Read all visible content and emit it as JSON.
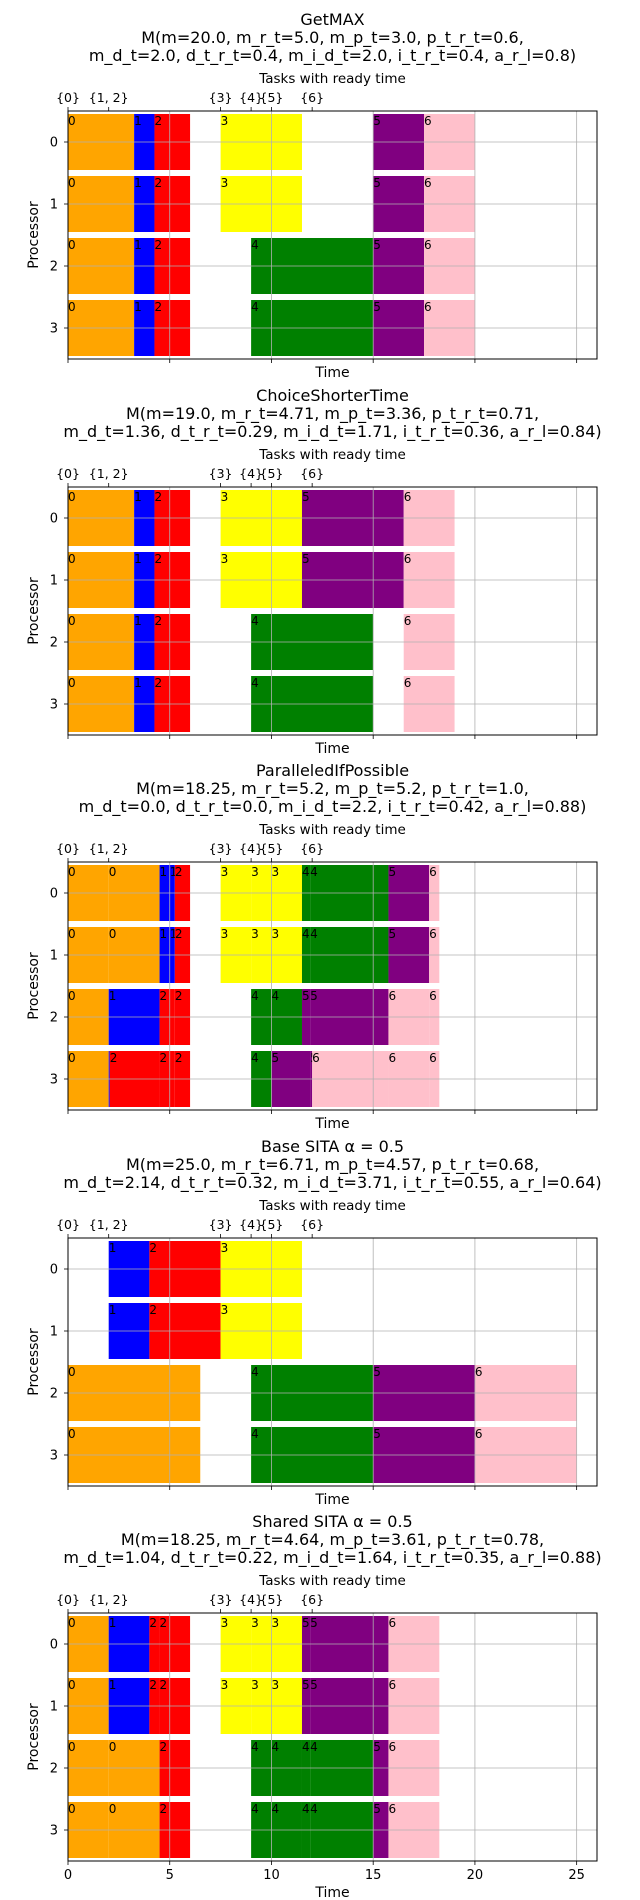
{
  "figure": {
    "xlabel": "Time",
    "ylabel": "Processor",
    "top_label": "Tasks with ready time",
    "xlim": [
      0,
      26
    ],
    "ready_ticks": [
      {
        "x": 0,
        "label": "{0}"
      },
      {
        "x": 2,
        "label": "{1, 2}"
      },
      {
        "x": 7.5,
        "label": "{3}"
      },
      {
        "x": 9,
        "label": "{4}"
      },
      {
        "x": 10,
        "label": "{5}"
      },
      {
        "x": 12,
        "label": "{6}"
      }
    ],
    "x_ticks": [
      0,
      5,
      10,
      15,
      20,
      25
    ],
    "processors": [
      0,
      1,
      2,
      3
    ],
    "task_colors": {
      "0": "#ffa500",
      "1": "#0000ff",
      "2": "#ff0000",
      "3": "#ffff00",
      "4": "#008000",
      "5": "#800080",
      "6": "#ffc0cb"
    }
  },
  "chart_data": [
    {
      "type": "gantt",
      "title": "GetMAX",
      "metrics_line1": "M(m=20.0, m_r_t=5.0, m_p_t=3.0, p_t_r_t=0.6,",
      "metrics_line2": "m_d_t=2.0, d_t_r_t=0.4, m_i_d_t=2.0, i_t_r_t=0.4, a_r_l=0.8)",
      "bars": [
        {
          "p": 0,
          "task": 0,
          "start": 0,
          "end": 3.25
        },
        {
          "p": 0,
          "task": 1,
          "start": 3.25,
          "end": 4.25
        },
        {
          "p": 0,
          "task": 2,
          "start": 4.25,
          "end": 6
        },
        {
          "p": 0,
          "task": 3,
          "start": 7.5,
          "end": 11.5
        },
        {
          "p": 0,
          "task": 5,
          "start": 15,
          "end": 17.5
        },
        {
          "p": 0,
          "task": 6,
          "start": 17.5,
          "end": 20
        },
        {
          "p": 1,
          "task": 0,
          "start": 0,
          "end": 3.25
        },
        {
          "p": 1,
          "task": 1,
          "start": 3.25,
          "end": 4.25
        },
        {
          "p": 1,
          "task": 2,
          "start": 4.25,
          "end": 6
        },
        {
          "p": 1,
          "task": 3,
          "start": 7.5,
          "end": 11.5
        },
        {
          "p": 1,
          "task": 5,
          "start": 15,
          "end": 17.5
        },
        {
          "p": 1,
          "task": 6,
          "start": 17.5,
          "end": 20
        },
        {
          "p": 2,
          "task": 0,
          "start": 0,
          "end": 3.25
        },
        {
          "p": 2,
          "task": 1,
          "start": 3.25,
          "end": 4.25
        },
        {
          "p": 2,
          "task": 2,
          "start": 4.25,
          "end": 6
        },
        {
          "p": 2,
          "task": 4,
          "start": 9,
          "end": 15
        },
        {
          "p": 2,
          "task": 5,
          "start": 15,
          "end": 17.5
        },
        {
          "p": 2,
          "task": 6,
          "start": 17.5,
          "end": 20
        },
        {
          "p": 3,
          "task": 0,
          "start": 0,
          "end": 3.25
        },
        {
          "p": 3,
          "task": 1,
          "start": 3.25,
          "end": 4.25
        },
        {
          "p": 3,
          "task": 2,
          "start": 4.25,
          "end": 6
        },
        {
          "p": 3,
          "task": 4,
          "start": 9,
          "end": 15
        },
        {
          "p": 3,
          "task": 5,
          "start": 15,
          "end": 17.5
        },
        {
          "p": 3,
          "task": 6,
          "start": 17.5,
          "end": 20
        }
      ]
    },
    {
      "type": "gantt",
      "title": "ChoiceShorterTime",
      "metrics_line1": "M(m=19.0, m_r_t=4.71, m_p_t=3.36, p_t_r_t=0.71,",
      "metrics_line2": "m_d_t=1.36, d_t_r_t=0.29, m_i_d_t=1.71, i_t_r_t=0.36, a_r_l=0.84)",
      "bars": [
        {
          "p": 0,
          "task": 0,
          "start": 0,
          "end": 3.25
        },
        {
          "p": 0,
          "task": 1,
          "start": 3.25,
          "end": 4.25
        },
        {
          "p": 0,
          "task": 2,
          "start": 4.25,
          "end": 6
        },
        {
          "p": 0,
          "task": 3,
          "start": 7.5,
          "end": 11.5
        },
        {
          "p": 0,
          "task": 5,
          "start": 11.5,
          "end": 16.5
        },
        {
          "p": 0,
          "task": 6,
          "start": 16.5,
          "end": 19
        },
        {
          "p": 1,
          "task": 0,
          "start": 0,
          "end": 3.25
        },
        {
          "p": 1,
          "task": 1,
          "start": 3.25,
          "end": 4.25
        },
        {
          "p": 1,
          "task": 2,
          "start": 4.25,
          "end": 6
        },
        {
          "p": 1,
          "task": 3,
          "start": 7.5,
          "end": 11.5
        },
        {
          "p": 1,
          "task": 5,
          "start": 11.5,
          "end": 16.5
        },
        {
          "p": 1,
          "task": 6,
          "start": 16.5,
          "end": 19
        },
        {
          "p": 2,
          "task": 0,
          "start": 0,
          "end": 3.25
        },
        {
          "p": 2,
          "task": 1,
          "start": 3.25,
          "end": 4.25
        },
        {
          "p": 2,
          "task": 2,
          "start": 4.25,
          "end": 6
        },
        {
          "p": 2,
          "task": 4,
          "start": 9,
          "end": 15
        },
        {
          "p": 2,
          "task": 6,
          "start": 16.5,
          "end": 19
        },
        {
          "p": 3,
          "task": 0,
          "start": 0,
          "end": 3.25
        },
        {
          "p": 3,
          "task": 1,
          "start": 3.25,
          "end": 4.25
        },
        {
          "p": 3,
          "task": 2,
          "start": 4.25,
          "end": 6
        },
        {
          "p": 3,
          "task": 4,
          "start": 9,
          "end": 15
        },
        {
          "p": 3,
          "task": 6,
          "start": 16.5,
          "end": 19
        }
      ]
    },
    {
      "type": "gantt",
      "title": "ParalleledIfPossible",
      "metrics_line1": "M(m=18.25, m_r_t=5.2, m_p_t=5.2, p_t_r_t=1.0,",
      "metrics_line2": "m_d_t=0.0, d_t_r_t=0.0, m_i_d_t=2.2, i_t_r_t=0.42, a_r_l=0.88)",
      "bars": [
        {
          "p": 0,
          "task": 0,
          "start": 0,
          "end": 2,
          "label": "0"
        },
        {
          "p": 0,
          "task": 0,
          "start": 2,
          "end": 4.5,
          "label": "0"
        },
        {
          "p": 0,
          "task": 1,
          "start": 4.5,
          "end": 5,
          "label": "1"
        },
        {
          "p": 0,
          "task": 1,
          "start": 5,
          "end": 5.25,
          "label": "1"
        },
        {
          "p": 0,
          "task": 2,
          "start": 5.25,
          "end": 6,
          "label": "2"
        },
        {
          "p": 0,
          "task": 3,
          "start": 7.5,
          "end": 9,
          "label": "3"
        },
        {
          "p": 0,
          "task": 3,
          "start": 9,
          "end": 10,
          "label": "3"
        },
        {
          "p": 0,
          "task": 3,
          "start": 10,
          "end": 11.5,
          "label": "3"
        },
        {
          "p": 0,
          "task": 4,
          "start": 11.5,
          "end": 11.9,
          "label": "4"
        },
        {
          "p": 0,
          "task": 4,
          "start": 11.9,
          "end": 15.75,
          "label": "4"
        },
        {
          "p": 0,
          "task": 5,
          "start": 15.75,
          "end": 17.75,
          "label": "5"
        },
        {
          "p": 0,
          "task": 6,
          "start": 17.75,
          "end": 18.25,
          "label": "6"
        },
        {
          "p": 1,
          "task": 0,
          "start": 0,
          "end": 2,
          "label": "0"
        },
        {
          "p": 1,
          "task": 0,
          "start": 2,
          "end": 4.5,
          "label": "0"
        },
        {
          "p": 1,
          "task": 1,
          "start": 4.5,
          "end": 5,
          "label": "1"
        },
        {
          "p": 1,
          "task": 1,
          "start": 5,
          "end": 5.25,
          "label": "1"
        },
        {
          "p": 1,
          "task": 2,
          "start": 5.25,
          "end": 6,
          "label": "2"
        },
        {
          "p": 1,
          "task": 3,
          "start": 7.5,
          "end": 9,
          "label": "3"
        },
        {
          "p": 1,
          "task": 3,
          "start": 9,
          "end": 10,
          "label": "3"
        },
        {
          "p": 1,
          "task": 3,
          "start": 10,
          "end": 11.5,
          "label": "3"
        },
        {
          "p": 1,
          "task": 4,
          "start": 11.5,
          "end": 11.9,
          "label": "4"
        },
        {
          "p": 1,
          "task": 4,
          "start": 11.9,
          "end": 15.75,
          "label": "4"
        },
        {
          "p": 1,
          "task": 5,
          "start": 15.75,
          "end": 17.75,
          "label": "5"
        },
        {
          "p": 1,
          "task": 6,
          "start": 17.75,
          "end": 18.25,
          "label": "6"
        },
        {
          "p": 2,
          "task": 0,
          "start": 0,
          "end": 2,
          "label": "0"
        },
        {
          "p": 2,
          "task": 1,
          "start": 2,
          "end": 4.5,
          "label": "1"
        },
        {
          "p": 2,
          "task": 2,
          "start": 4.5,
          "end": 5.25,
          "label": "2"
        },
        {
          "p": 2,
          "task": 2,
          "start": 5.25,
          "end": 6,
          "label": "2"
        },
        {
          "p": 2,
          "task": 4,
          "start": 9,
          "end": 10,
          "label": "4"
        },
        {
          "p": 2,
          "task": 4,
          "start": 10,
          "end": 11.5,
          "label": "4"
        },
        {
          "p": 2,
          "task": 5,
          "start": 11.5,
          "end": 11.9,
          "label": "5"
        },
        {
          "p": 2,
          "task": 5,
          "start": 11.9,
          "end": 15.75,
          "label": "5"
        },
        {
          "p": 2,
          "task": 6,
          "start": 15.75,
          "end": 17.75,
          "label": "6"
        },
        {
          "p": 2,
          "task": 6,
          "start": 17.75,
          "end": 18.25,
          "label": "6"
        },
        {
          "p": 3,
          "task": 0,
          "start": 0,
          "end": 2,
          "label": "0"
        },
        {
          "p": 3,
          "task": 1,
          "start": 2,
          "end": 2.05,
          "label": "1"
        },
        {
          "p": 3,
          "task": 2,
          "start": 2.05,
          "end": 4.5,
          "label": "2"
        },
        {
          "p": 3,
          "task": 2,
          "start": 4.5,
          "end": 5.25,
          "label": "2"
        },
        {
          "p": 3,
          "task": 2,
          "start": 5.25,
          "end": 6,
          "label": "2"
        },
        {
          "p": 3,
          "task": 4,
          "start": 9,
          "end": 10,
          "label": "4"
        },
        {
          "p": 3,
          "task": 5,
          "start": 10,
          "end": 11.9,
          "label": "5"
        },
        {
          "p": 3,
          "task": 5,
          "start": 11.9,
          "end": 12,
          "label": "5"
        },
        {
          "p": 3,
          "task": 6,
          "start": 12,
          "end": 15.75,
          "label": "6"
        },
        {
          "p": 3,
          "task": 6,
          "start": 15.75,
          "end": 17.75,
          "label": "6"
        },
        {
          "p": 3,
          "task": 6,
          "start": 17.75,
          "end": 18.25,
          "label": "6"
        }
      ]
    },
    {
      "type": "gantt",
      "title": "Base SITA α = 0.5",
      "metrics_line1": "M(m=25.0, m_r_t=6.71, m_p_t=4.57, p_t_r_t=0.68,",
      "metrics_line2": "m_d_t=2.14, d_t_r_t=0.32, m_i_d_t=3.71, i_t_r_t=0.55, a_r_l=0.64)",
      "bars": [
        {
          "p": 0,
          "task": 1,
          "start": 2,
          "end": 4
        },
        {
          "p": 0,
          "task": 2,
          "start": 4,
          "end": 7.5
        },
        {
          "p": 0,
          "task": 3,
          "start": 7.5,
          "end": 11.5
        },
        {
          "p": 1,
          "task": 1,
          "start": 2,
          "end": 4
        },
        {
          "p": 1,
          "task": 2,
          "start": 4,
          "end": 7.5
        },
        {
          "p": 1,
          "task": 3,
          "start": 7.5,
          "end": 11.5
        },
        {
          "p": 2,
          "task": 0,
          "start": 0,
          "end": 6.5
        },
        {
          "p": 2,
          "task": 4,
          "start": 9,
          "end": 15
        },
        {
          "p": 2,
          "task": 5,
          "start": 15,
          "end": 20
        },
        {
          "p": 2,
          "task": 6,
          "start": 20,
          "end": 25
        },
        {
          "p": 3,
          "task": 0,
          "start": 0,
          "end": 6.5
        },
        {
          "p": 3,
          "task": 4,
          "start": 9,
          "end": 15
        },
        {
          "p": 3,
          "task": 5,
          "start": 15,
          "end": 20
        },
        {
          "p": 3,
          "task": 6,
          "start": 20,
          "end": 25
        }
      ]
    },
    {
      "type": "gantt",
      "title": "Shared SITA α = 0.5",
      "metrics_line1": "M(m=18.25, m_r_t=4.64, m_p_t=3.61, p_t_r_t=0.78,",
      "metrics_line2": "m_d_t=1.04, d_t_r_t=0.22, m_i_d_t=1.64, i_t_r_t=0.35, a_r_l=0.88)",
      "bars": [
        {
          "p": 0,
          "task": 0,
          "start": 0,
          "end": 2,
          "label": "0"
        },
        {
          "p": 0,
          "task": 1,
          "start": 2,
          "end": 4,
          "label": "1"
        },
        {
          "p": 0,
          "task": 2,
          "start": 4,
          "end": 4.5,
          "label": "2"
        },
        {
          "p": 0,
          "task": 2,
          "start": 4.5,
          "end": 6,
          "label": "2"
        },
        {
          "p": 0,
          "task": 3,
          "start": 7.5,
          "end": 9,
          "label": "3"
        },
        {
          "p": 0,
          "task": 3,
          "start": 9,
          "end": 10,
          "label": "3"
        },
        {
          "p": 0,
          "task": 3,
          "start": 10,
          "end": 11.5,
          "label": "3"
        },
        {
          "p": 0,
          "task": 5,
          "start": 11.5,
          "end": 11.9,
          "label": "5"
        },
        {
          "p": 0,
          "task": 5,
          "start": 11.9,
          "end": 15.75,
          "label": "5"
        },
        {
          "p": 0,
          "task": 6,
          "start": 15.75,
          "end": 18.25,
          "label": "6"
        },
        {
          "p": 1,
          "task": 0,
          "start": 0,
          "end": 2,
          "label": "0"
        },
        {
          "p": 1,
          "task": 1,
          "start": 2,
          "end": 4,
          "label": "1"
        },
        {
          "p": 1,
          "task": 2,
          "start": 4,
          "end": 4.5,
          "label": "2"
        },
        {
          "p": 1,
          "task": 2,
          "start": 4.5,
          "end": 6,
          "label": "2"
        },
        {
          "p": 1,
          "task": 3,
          "start": 7.5,
          "end": 9,
          "label": "3"
        },
        {
          "p": 1,
          "task": 3,
          "start": 9,
          "end": 10,
          "label": "3"
        },
        {
          "p": 1,
          "task": 3,
          "start": 10,
          "end": 11.5,
          "label": "3"
        },
        {
          "p": 1,
          "task": 5,
          "start": 11.5,
          "end": 11.9,
          "label": "5"
        },
        {
          "p": 1,
          "task": 5,
          "start": 11.9,
          "end": 15.75,
          "label": "5"
        },
        {
          "p": 1,
          "task": 6,
          "start": 15.75,
          "end": 18.25,
          "label": "6"
        },
        {
          "p": 2,
          "task": 0,
          "start": 0,
          "end": 2,
          "label": "0"
        },
        {
          "p": 2,
          "task": 0,
          "start": 2,
          "end": 4.5,
          "label": "0"
        },
        {
          "p": 2,
          "task": 2,
          "start": 4.5,
          "end": 6,
          "label": "2"
        },
        {
          "p": 2,
          "task": 4,
          "start": 9,
          "end": 10,
          "label": "4"
        },
        {
          "p": 2,
          "task": 4,
          "start": 10,
          "end": 11.5,
          "label": "4"
        },
        {
          "p": 2,
          "task": 4,
          "start": 11.5,
          "end": 11.9,
          "label": "4"
        },
        {
          "p": 2,
          "task": 4,
          "start": 11.9,
          "end": 15,
          "label": "4"
        },
        {
          "p": 2,
          "task": 5,
          "start": 15,
          "end": 15.75,
          "label": "5"
        },
        {
          "p": 2,
          "task": 6,
          "start": 15.75,
          "end": 18.25,
          "label": "6"
        },
        {
          "p": 3,
          "task": 0,
          "start": 0,
          "end": 2,
          "label": "0"
        },
        {
          "p": 3,
          "task": 0,
          "start": 2,
          "end": 4.5,
          "label": "0"
        },
        {
          "p": 3,
          "task": 2,
          "start": 4.5,
          "end": 6,
          "label": "2"
        },
        {
          "p": 3,
          "task": 4,
          "start": 9,
          "end": 10,
          "label": "4"
        },
        {
          "p": 3,
          "task": 4,
          "start": 10,
          "end": 11.5,
          "label": "4"
        },
        {
          "p": 3,
          "task": 4,
          "start": 11.5,
          "end": 11.9,
          "label": "4"
        },
        {
          "p": 3,
          "task": 4,
          "start": 11.9,
          "end": 15,
          "label": "4"
        },
        {
          "p": 3,
          "task": 5,
          "start": 15,
          "end": 15.75,
          "label": "5"
        },
        {
          "p": 3,
          "task": 6,
          "start": 15.75,
          "end": 18.25,
          "label": "6"
        }
      ]
    }
  ]
}
